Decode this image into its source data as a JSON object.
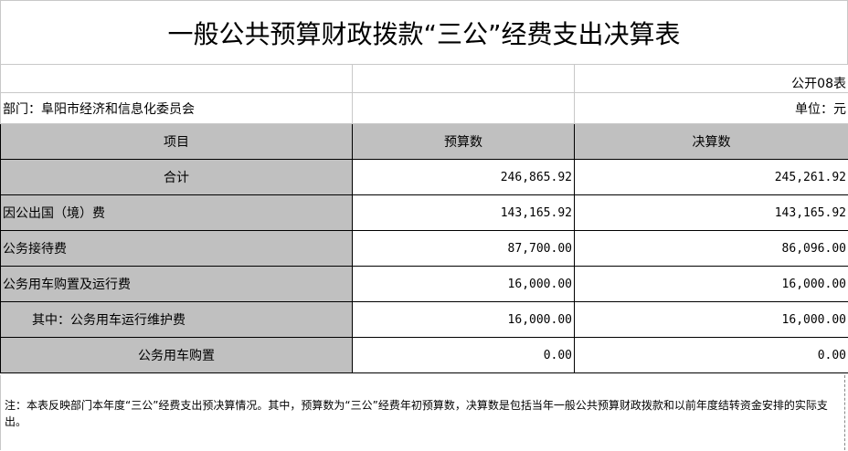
{
  "title": "一般公共预算财政拨款“三公”经费支出决算表",
  "form_no": "公开08表",
  "department": "部门：阜阳市经济和信息化委员会",
  "unit": "单位：元",
  "headers": {
    "item": "项目",
    "budget": "预算数",
    "final": "决算数"
  },
  "rows": [
    {
      "item": "合计",
      "budget": "246,865.92",
      "final": "245,261.92"
    },
    {
      "item": "因公出国（境）费",
      "budget": "143,165.92",
      "final": "143,165.92"
    },
    {
      "item": "公务接待费",
      "budget": "87,700.00",
      "final": "86,096.00"
    },
    {
      "item": "公务用车购置及运行费",
      "budget": "16,000.00",
      "final": "16,000.00"
    },
    {
      "item": "其中：公务用车运行维护费",
      "budget": "16,000.00",
      "final": "16,000.00"
    },
    {
      "item": "公务用车购置",
      "budget": "0.00",
      "final": "0.00"
    }
  ],
  "note": "注：本表反映部门本年度“三公”经费支出预决算情况。其中，预算数为“三公”经费年初预算数，决算数是包括当年一般公共预算财政拨款和以前年度结转资金安排的实际支出。"
}
